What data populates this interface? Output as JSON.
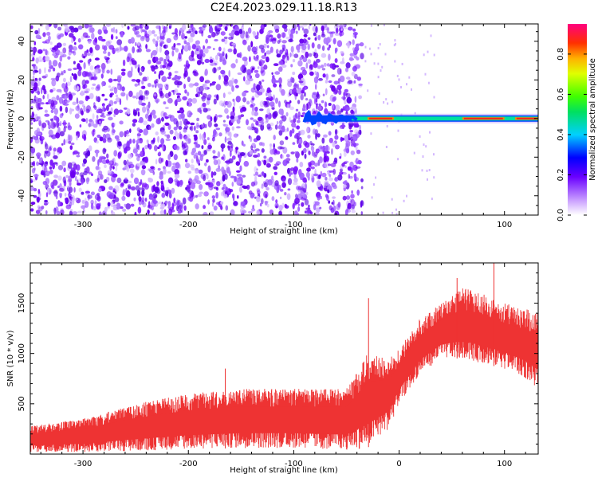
{
  "title": "C2E4.2023.029.11.18.R13",
  "chart_data": [
    {
      "type": "heatmap",
      "title": "C2E4.2023.029.11.18.R13",
      "xlabel": "Height of straight line (km)",
      "ylabel": "Frequency (Hz)",
      "xlim": [
        -350,
        132
      ],
      "ylim": [
        -50,
        49
      ],
      "xticks": [
        -300,
        -200,
        -100,
        0,
        100
      ],
      "yticks": [
        -40,
        -20,
        0,
        20,
        40
      ],
      "xtick_labels": [
        "-300",
        "-200",
        "-100",
        "0",
        "100"
      ],
      "ytick_labels": [
        "-40",
        "-20",
        "0",
        "20",
        "40"
      ],
      "noise_region_x": [
        -350,
        -35
      ],
      "signal_line": {
        "frequency_hz": 0,
        "x_start": -90,
        "x_end": 132,
        "peak_amplitude_ranges": [
          [
            -30,
            -5
          ],
          [
            60,
            100
          ],
          [
            110,
            132
          ]
        ]
      },
      "colorbar": {
        "label": "Normalized spectral amplitude",
        "range": [
          0,
          0.95
        ],
        "ticks": [
          0.0,
          0.2,
          0.4,
          0.6,
          0.8
        ],
        "tick_labels": [
          "0.0",
          "0.2",
          "0.4",
          "0.6",
          "0.8"
        ]
      }
    },
    {
      "type": "line",
      "xlabel": "Height of straight line (km)",
      "ylabel": "SNR (10 * v/v)",
      "xlim": [
        -350,
        132
      ],
      "ylim": [
        0,
        1900
      ],
      "xticks": [
        -300,
        -200,
        -100,
        0,
        100
      ],
      "yticks": [
        500,
        1000,
        1500
      ],
      "xtick_labels": [
        "-300",
        "-200",
        "-100",
        "0",
        "100"
      ],
      "ytick_labels": [
        "500",
        "1000",
        "1500"
      ],
      "color": "#ee3333",
      "envelope": {
        "x": [
          -350,
          -300,
          -250,
          -200,
          -150,
          -100,
          -50,
          -30,
          -10,
          0,
          20,
          40,
          60,
          80,
          100,
          120,
          132
        ],
        "low": [
          20,
          20,
          30,
          50,
          60,
          60,
          40,
          60,
          250,
          500,
          800,
          950,
          950,
          900,
          850,
          750,
          650
        ],
        "high": [
          280,
          350,
          500,
          600,
          650,
          650,
          650,
          1000,
          950,
          1050,
          1350,
          1500,
          1650,
          1600,
          1500,
          1450,
          1400
        ]
      },
      "spikes": [
        {
          "x": -29,
          "y": 1550
        },
        {
          "x": 90,
          "y": 1900
        },
        {
          "x": 55,
          "y": 1750
        },
        {
          "x": -165,
          "y": 850
        }
      ]
    }
  ]
}
